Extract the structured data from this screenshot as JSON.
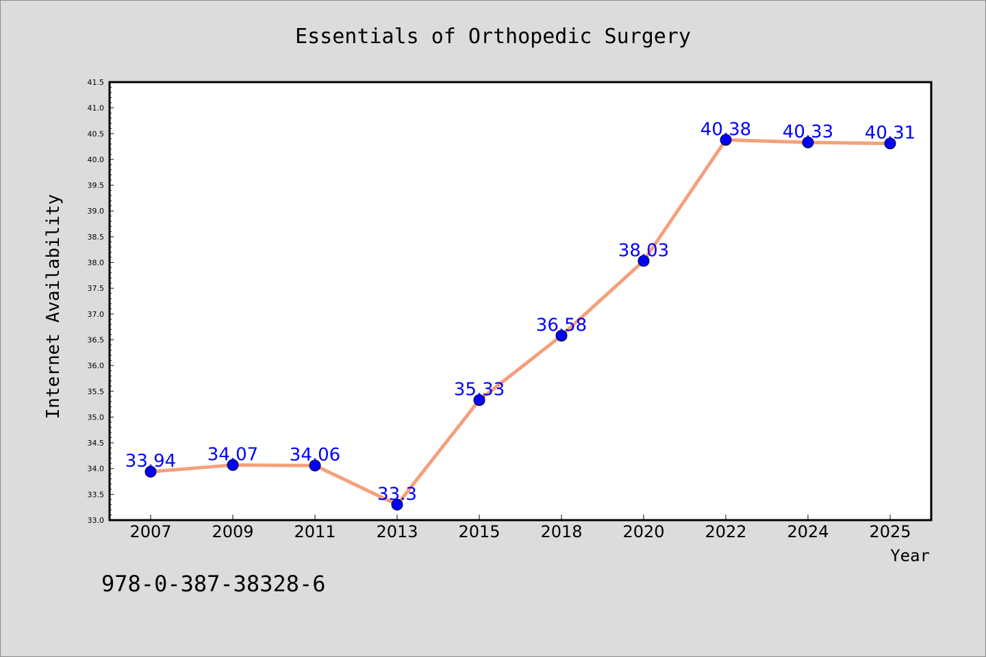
{
  "chart_data": {
    "type": "line",
    "title": "Essentials of Orthopedic Surgery",
    "xlabel": "Year",
    "ylabel": "Internet Availability",
    "categories": [
      "2007",
      "2009",
      "2011",
      "2013",
      "2015",
      "2018",
      "2020",
      "2022",
      "2024",
      "2025"
    ],
    "series": [
      {
        "values": [
          33.94,
          34.07,
          34.06,
          33.3,
          35.33,
          36.58,
          38.03,
          40.38,
          40.33,
          40.31
        ]
      }
    ],
    "data_labels": [
      "33.94",
      "34.07",
      "34.06",
      "33.3",
      "35.33",
      "36.58",
      "38.03",
      "40.38",
      "40.33",
      "40.31"
    ],
    "ylim": [
      33.0,
      41.5
    ],
    "yticks": [
      "33.0",
      "33.5",
      "34.0",
      "34.5",
      "35.0",
      "35.5",
      "36.0",
      "36.5",
      "37.0",
      "37.5",
      "38.0",
      "38.5",
      "39.0",
      "39.5",
      "40.0",
      "40.5",
      "41.0",
      "41.5"
    ],
    "grid": false,
    "legend": "none"
  },
  "colors": {
    "line": "#f4a07c",
    "marker": "#0000ff",
    "data_label": "#0000ff",
    "background": "#dcdcdc",
    "plot_background": "#ffffff"
  },
  "footer": {
    "isbn": "978-0-387-38328-6"
  }
}
